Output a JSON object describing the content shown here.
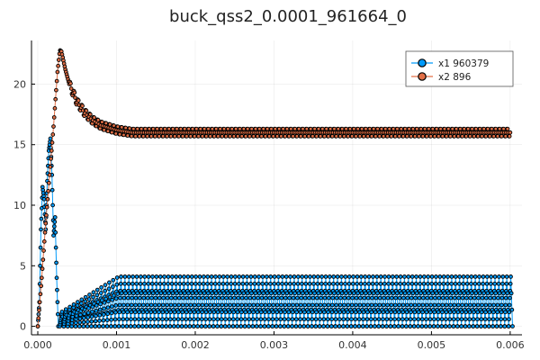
{
  "chart_data": {
    "type": "line",
    "title": "buck_qss2_0.0001_961664_0",
    "xlabel": "",
    "ylabel": "",
    "xlim": [
      -8e-05,
      0.00615
    ],
    "ylim": [
      -0.7,
      23.6
    ],
    "x_ticks": [
      0.0,
      0.001,
      0.002,
      0.003,
      0.004,
      0.005,
      0.006
    ],
    "x_tick_labels": [
      "0.000",
      "0.001",
      "0.002",
      "0.003",
      "0.004",
      "0.005",
      "0.006"
    ],
    "y_ticks": [
      0,
      5,
      10,
      15,
      20
    ],
    "y_tick_labels": [
      "0",
      "5",
      "10",
      "15",
      "20"
    ],
    "grid": true,
    "legend_position": "top-right",
    "series": [
      {
        "name": "x1 960379",
        "color": "#009AFA",
        "marker": "circle",
        "description": "inductor current: startup spikes then switching sawtooth",
        "startup_points": [
          [
            0.0,
            0.0
          ],
          [
            2e-05,
            2.0
          ],
          [
            4e-05,
            8.0
          ],
          [
            6e-05,
            11.5
          ],
          [
            8e-05,
            10.5
          ],
          [
            0.0001,
            8.0
          ],
          [
            0.00012,
            12.0
          ],
          [
            0.00014,
            14.5
          ],
          [
            0.00016,
            15.5
          ],
          [
            0.00018,
            12.5
          ],
          [
            0.0002,
            7.5
          ],
          [
            0.00022,
            9.0
          ],
          [
            0.00024,
            4.0
          ],
          [
            0.00026,
            0.0
          ]
        ],
        "steady_state": {
          "x_start": 0.00028,
          "x_end": 0.006,
          "period": 5e-05,
          "peak_final": 4.1,
          "peak_ramp_end": 0.001,
          "low": 0.0
        }
      },
      {
        "name": "x2 896",
        "color": "#E26F46",
        "marker": "circle",
        "description": "output voltage: rises to peak then settles with ripple",
        "startup_points": [
          [
            0.0,
            0.0
          ],
          [
            5e-05,
            4.0
          ],
          [
            0.0001,
            8.5
          ],
          [
            0.00015,
            12.5
          ],
          [
            0.0002,
            16.5
          ],
          [
            0.00025,
            21.0
          ],
          [
            0.00028,
            22.8
          ],
          [
            0.0003,
            22.7
          ],
          [
            0.00035,
            21.2
          ],
          [
            0.0004,
            20.0
          ],
          [
            0.0005,
            18.5
          ],
          [
            0.0006,
            17.6
          ],
          [
            0.0007,
            17.0
          ],
          [
            0.0008,
            16.6
          ],
          [
            0.001,
            16.2
          ],
          [
            0.0012,
            16.0
          ],
          [
            0.006,
            16.0
          ]
        ],
        "ripple_amplitude": 0.35,
        "period": 5e-05
      }
    ]
  }
}
